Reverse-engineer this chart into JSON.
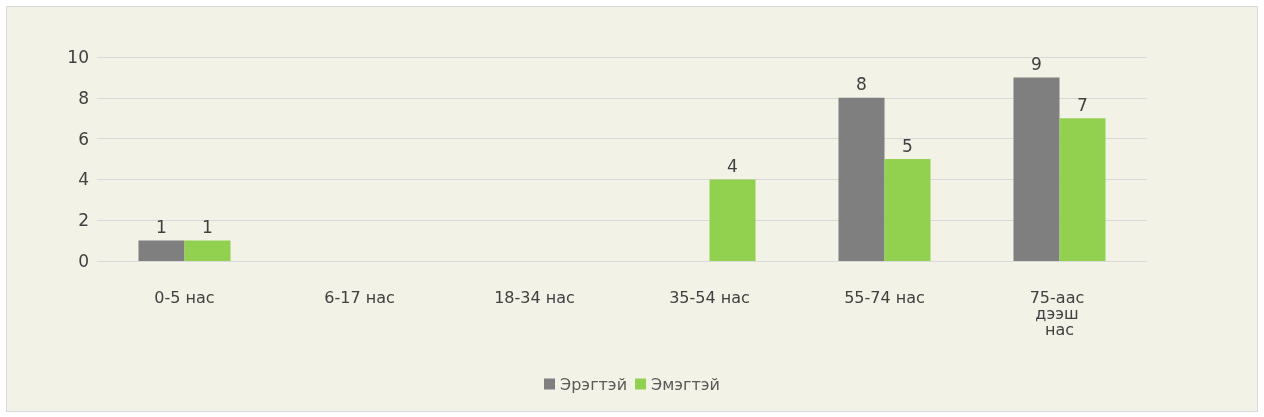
{
  "chart_data": {
    "type": "bar",
    "categories": [
      "0-5 нас",
      "6-17 нас",
      "18-34 нас",
      "35-54 нас",
      "55-74 нас",
      "75-аас дээш нас"
    ],
    "series": [
      {
        "name": "Эрэгтэй",
        "color": "#7f7f7f",
        "values": [
          1,
          null,
          null,
          null,
          8,
          9
        ]
      },
      {
        "name": "Эмэгтэй",
        "color": "#92d050",
        "values": [
          1,
          null,
          null,
          4,
          5,
          7
        ]
      }
    ],
    "ylim": [
      0,
      10
    ],
    "yticks": [
      0,
      2,
      4,
      6,
      8,
      10
    ],
    "grid": "y",
    "legend": "bottom",
    "data_labels": true
  }
}
